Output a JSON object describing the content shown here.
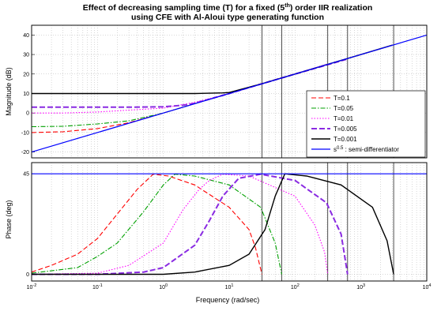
{
  "chart_data": {
    "type": "line",
    "title_lines": [
      "Effect of decreasing sampling time (T) for a fixed (5",
      "th",
      ") order IIR realization",
      "using CFE with Al-Aloui type generating function"
    ],
    "xlabel": "Frequency  (rad/sec)",
    "x_scale": "log",
    "xlim": [
      0.01,
      10000
    ],
    "x_ticks": [
      {
        "base": "10",
        "exp": "-2"
      },
      {
        "base": "10",
        "exp": "-1"
      },
      {
        "base": "10",
        "exp": "0"
      },
      {
        "base": "10",
        "exp": "1"
      },
      {
        "base": "10",
        "exp": "2"
      },
      {
        "base": "10",
        "exp": "3"
      },
      {
        "base": "10",
        "exp": "4"
      }
    ],
    "grid": true,
    "legend_position": "right",
    "vertical_markers": [
      31.4,
      62.8,
      314,
      628,
      3140
    ],
    "magnitude": {
      "ylabel": "Magnitude (dB)",
      "ylim": [
        -23,
        45
      ],
      "yticks": [
        "40",
        "30",
        "20",
        "10",
        "0",
        "-10",
        "-20"
      ],
      "yvalues": [
        40,
        30,
        20,
        10,
        0,
        -10,
        -20
      ],
      "series": [
        {
          "name": "T=0.1",
          "color": "#ff0000",
          "dash": "6,3",
          "width": 1.1,
          "x": [
            0.01,
            0.03,
            0.1,
            0.3,
            1,
            3,
            10,
            30,
            50
          ],
          "y": [
            -10,
            -9.6,
            -8,
            -5,
            0,
            4.8,
            10,
            14.8,
            17
          ]
        },
        {
          "name": "T=0.05",
          "color": "#00a000",
          "dash": "6,2,1.5,2",
          "width": 1.1,
          "x": [
            0.01,
            0.03,
            0.1,
            0.3,
            1,
            3,
            10,
            30,
            100
          ],
          "y": [
            -7,
            -6.8,
            -5.6,
            -4,
            0,
            4.8,
            10,
            14.8,
            20
          ]
        },
        {
          "name": "T=0.01",
          "color": "#ff00ff",
          "dash": "1.5,2",
          "width": 1.1,
          "x": [
            0.01,
            0.03,
            0.1,
            0.3,
            1,
            3,
            10,
            30,
            100,
            300
          ],
          "y": [
            0,
            0,
            0.5,
            1.5,
            2.5,
            5.5,
            10,
            14.8,
            20,
            25
          ]
        },
        {
          "name": "T=0.005",
          "color": "#8a2be2",
          "dash": "7,3",
          "width": 2,
          "x": [
            0.01,
            0.1,
            0.3,
            1,
            2,
            3,
            10,
            30,
            100,
            600
          ],
          "y": [
            3,
            3,
            3,
            3.2,
            4,
            5,
            10,
            14.8,
            20,
            27.5
          ]
        },
        {
          "name": "T=0.001",
          "color": "#000000",
          "dash": "",
          "width": 1.4,
          "x": [
            0.01,
            0.1,
            1,
            3,
            8,
            10,
            30,
            100,
            1000,
            3000
          ],
          "y": [
            10,
            10,
            10,
            10,
            10.3,
            10.5,
            14.8,
            20,
            30,
            34.8
          ]
        },
        {
          "name": "s^0.5 : semi-differentiator",
          "color": "#0000ff",
          "dash": "",
          "width": 1.2,
          "x": [
            0.01,
            10000
          ],
          "y": [
            -20,
            40
          ]
        }
      ]
    },
    "phase": {
      "ylabel": "Phase (deg)",
      "ylim": [
        -3,
        50
      ],
      "yticks": [
        "45",
        "0"
      ],
      "yvalues": [
        45,
        0
      ],
      "series": [
        {
          "name": "T=0.1",
          "color": "#ff0000",
          "dash": "6,3",
          "width": 1.1,
          "x": [
            0.01,
            0.02,
            0.05,
            0.1,
            0.2,
            0.4,
            0.7,
            1.2,
            3,
            10,
            20,
            25,
            31.4
          ],
          "y": [
            1,
            4,
            9,
            16,
            27,
            38,
            44.8,
            44,
            40,
            30,
            20,
            12,
            0
          ]
        },
        {
          "name": "T=0.05",
          "color": "#00a000",
          "dash": "6,2,1.5,2",
          "width": 1.1,
          "x": [
            0.01,
            0.05,
            0.1,
            0.2,
            0.5,
            1,
            1.5,
            3,
            10,
            30,
            50,
            62.8
          ],
          "y": [
            0.5,
            3,
            8,
            14,
            28,
            40,
            44.8,
            44,
            40,
            30,
            14,
            0
          ]
        },
        {
          "name": "T=0.01",
          "color": "#ff00ff",
          "dash": "1.5,2",
          "width": 1.1,
          "x": [
            0.01,
            0.1,
            0.3,
            1,
            2,
            3.5,
            5,
            8,
            20,
            100,
            200,
            280,
            314
          ],
          "y": [
            0,
            0.5,
            4,
            14,
            29,
            38,
            42,
            44.8,
            44,
            35,
            22,
            10,
            0
          ]
        },
        {
          "name": "T=0.005",
          "color": "#8a2be2",
          "dash": "7,3",
          "width": 2,
          "x": [
            0.01,
            0.1,
            0.5,
            1,
            3,
            5,
            8,
            14,
            30,
            100,
            300,
            500,
            628
          ],
          "y": [
            0,
            0,
            1,
            3,
            13,
            24,
            35,
            43,
            44.8,
            42,
            32,
            18,
            0
          ]
        },
        {
          "name": "T=0.001",
          "color": "#000000",
          "dash": "",
          "width": 1.4,
          "x": [
            0.01,
            0.1,
            1,
            3,
            10,
            20,
            35,
            50,
            70,
            150,
            500,
            1500,
            2500,
            3140
          ],
          "y": [
            0,
            0,
            0,
            1,
            4,
            9,
            20,
            35,
            45,
            44,
            40,
            30,
            15,
            0
          ]
        },
        {
          "name": "s^0.5 : semi-differentiator",
          "color": "#0000ff",
          "dash": "",
          "width": 1.2,
          "x": [
            0.01,
            10000
          ],
          "y": [
            45,
            45
          ]
        }
      ]
    },
    "legend": [
      {
        "label": "T=0.1",
        "color": "#ff0000",
        "dash": "6,3",
        "width": 1.1
      },
      {
        "label": "T=0.05",
        "color": "#00a000",
        "dash": "6,2,1.5,2",
        "width": 1.1
      },
      {
        "label": "T=0.01",
        "color": "#ff00ff",
        "dash": "1.5,2",
        "width": 1.1
      },
      {
        "label": "T=0.005",
        "color": "#8a2be2",
        "dash": "7,3",
        "width": 2
      },
      {
        "label": "T=0.001",
        "color": "#000000",
        "dash": "",
        "width": 1.4
      },
      {
        "label_base": "s",
        "label_exp": "0.5",
        "label_rest": " : semi-differentiator",
        "color": "#0000ff",
        "dash": "",
        "width": 1.2
      }
    ]
  }
}
